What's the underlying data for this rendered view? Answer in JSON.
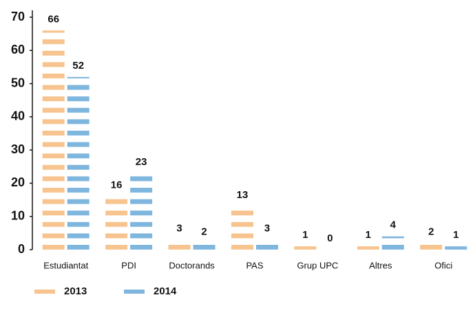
{
  "chart_data": {
    "type": "bar",
    "categories": [
      "Estudiantat",
      "PDI",
      "Doctorands",
      "PAS",
      "Grup UPC",
      "Altres",
      "Ofici"
    ],
    "series": [
      {
        "name": "2013",
        "color": "#f7c48f",
        "values": [
          66,
          16,
          3,
          13,
          1,
          1,
          2
        ]
      },
      {
        "name": "2014",
        "color": "#7eb6de",
        "values": [
          52,
          23,
          2,
          3,
          0,
          4,
          1
        ]
      }
    ],
    "ylim": [
      0,
      70
    ],
    "yticks": [
      0,
      10,
      20,
      30,
      40,
      50,
      60,
      70
    ],
    "grid": false,
    "legend": "bottom-left"
  }
}
